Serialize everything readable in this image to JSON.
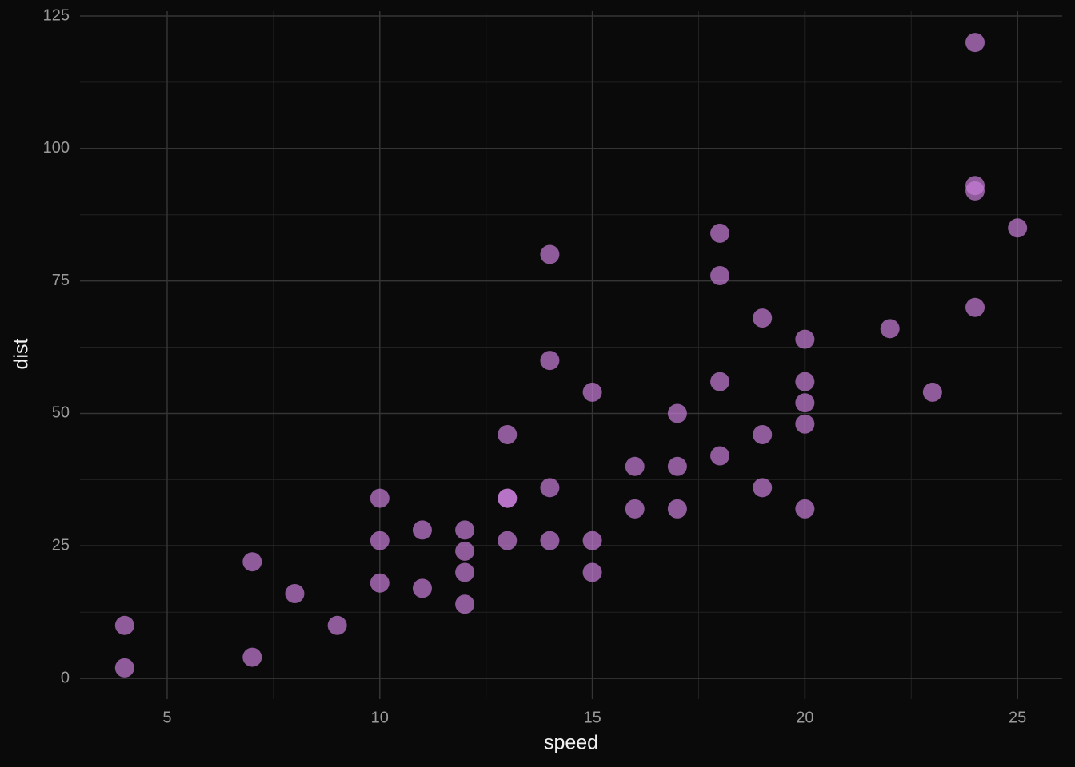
{
  "chart_data": {
    "type": "scatter",
    "x_label": "speed",
    "y_label": "dist",
    "x": [
      4,
      4,
      7,
      7,
      8,
      9,
      10,
      10,
      10,
      11,
      11,
      12,
      12,
      12,
      12,
      13,
      13,
      13,
      13,
      14,
      14,
      14,
      14,
      15,
      15,
      15,
      16,
      16,
      17,
      17,
      17,
      18,
      18,
      18,
      18,
      19,
      19,
      19,
      20,
      20,
      20,
      20,
      20,
      22,
      23,
      24,
      24,
      24,
      24,
      25
    ],
    "values": [
      2,
      10,
      4,
      22,
      16,
      10,
      18,
      26,
      34,
      17,
      28,
      14,
      20,
      24,
      28,
      26,
      34,
      34,
      46,
      26,
      36,
      60,
      80,
      20,
      26,
      54,
      32,
      40,
      32,
      40,
      50,
      42,
      56,
      76,
      84,
      36,
      46,
      68,
      32,
      48,
      52,
      56,
      64,
      66,
      54,
      70,
      92,
      93,
      120,
      85
    ],
    "color": "#c77dd7",
    "xlim": [
      2.95,
      26.05
    ],
    "ylim": [
      -3.9,
      125.9
    ],
    "xticks": [
      5,
      10,
      15,
      20,
      25
    ],
    "yticks": [
      0,
      25,
      50,
      75,
      100,
      125
    ],
    "xminor": [
      7.5,
      12.5,
      17.5,
      22.5
    ],
    "yminor": [
      12.5,
      37.5,
      62.5,
      87.5,
      112.5
    ],
    "grid": true
  }
}
